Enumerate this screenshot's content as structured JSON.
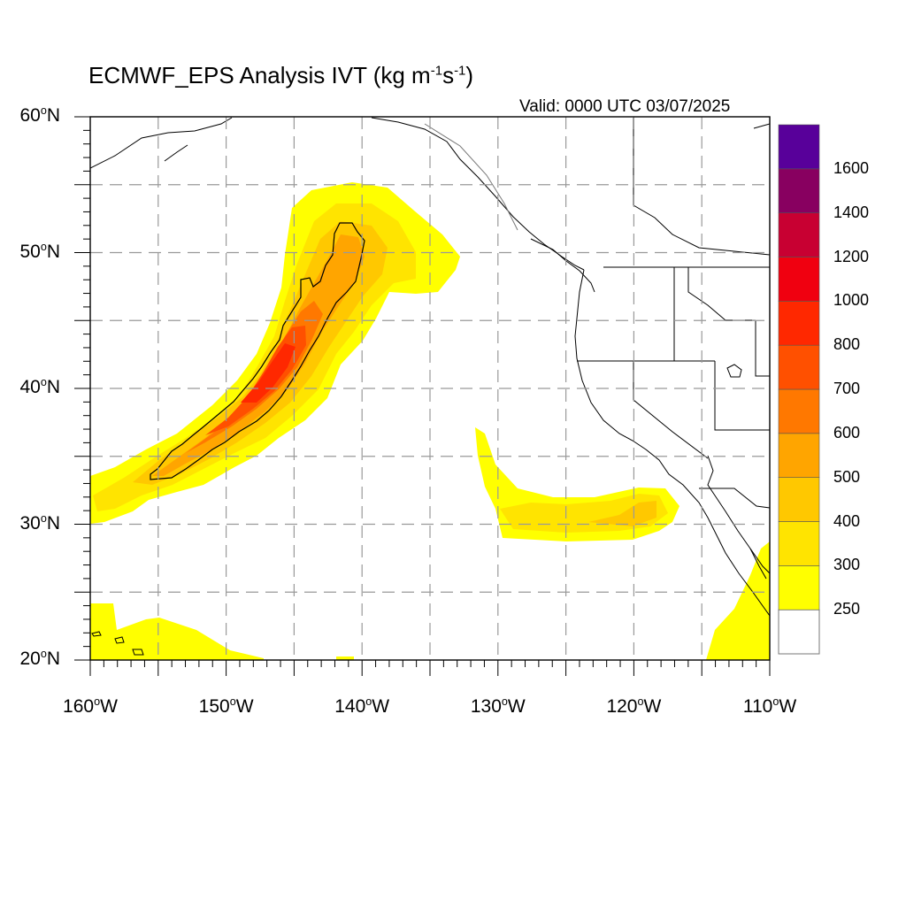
{
  "title": {
    "main": "ECMWF_EPS Analysis IVT (kg m",
    "exp1": "-1",
    "mid": "s",
    "exp2": "-1",
    "end": ")"
  },
  "valid": "Valid: 0000 UTC 03/07/2025",
  "map": {
    "lon_range": [
      -160,
      -110
    ],
    "lat_range": [
      20,
      60
    ],
    "grid_lons": [
      -155,
      -150,
      -145,
      -140,
      -135,
      -130,
      -125,
      -120,
      -115
    ],
    "grid_lats": [
      25,
      30,
      35,
      40,
      45,
      50,
      55
    ],
    "lat_labels": [
      {
        "lat": 60,
        "deg": "60",
        "hem": "N"
      },
      {
        "lat": 50,
        "deg": "50",
        "hem": "N"
      },
      {
        "lat": 40,
        "deg": "40",
        "hem": "N"
      },
      {
        "lat": 30,
        "deg": "30",
        "hem": "N"
      },
      {
        "lat": 20,
        "deg": "20",
        "hem": "N"
      }
    ],
    "lon_labels": [
      {
        "lon": -160,
        "deg": "160",
        "hem": "W"
      },
      {
        "lon": -150,
        "deg": "150",
        "hem": "W"
      },
      {
        "lon": -140,
        "deg": "140",
        "hem": "W"
      },
      {
        "lon": -130,
        "deg": "130",
        "hem": "W"
      },
      {
        "lon": -120,
        "deg": "120",
        "hem": "W"
      },
      {
        "lon": -110,
        "deg": "110",
        "hem": "W"
      }
    ]
  },
  "colorbar": {
    "levels": [
      {
        "label": "250",
        "color": "#ffff00"
      },
      {
        "label": "300",
        "color": "#ffe400"
      },
      {
        "label": "400",
        "color": "#ffc800"
      },
      {
        "label": "500",
        "color": "#ffa500"
      },
      {
        "label": "600",
        "color": "#ff7800"
      },
      {
        "label": "700",
        "color": "#ff5000"
      },
      {
        "label": "800",
        "color": "#ff2800"
      },
      {
        "label": "1000",
        "color": "#f00010"
      },
      {
        "label": "1200",
        "color": "#c80032"
      },
      {
        "label": "1400",
        "color": "#880060"
      },
      {
        "label": "1600",
        "color": "#58009a"
      }
    ],
    "below_color": "#ffffff"
  }
}
